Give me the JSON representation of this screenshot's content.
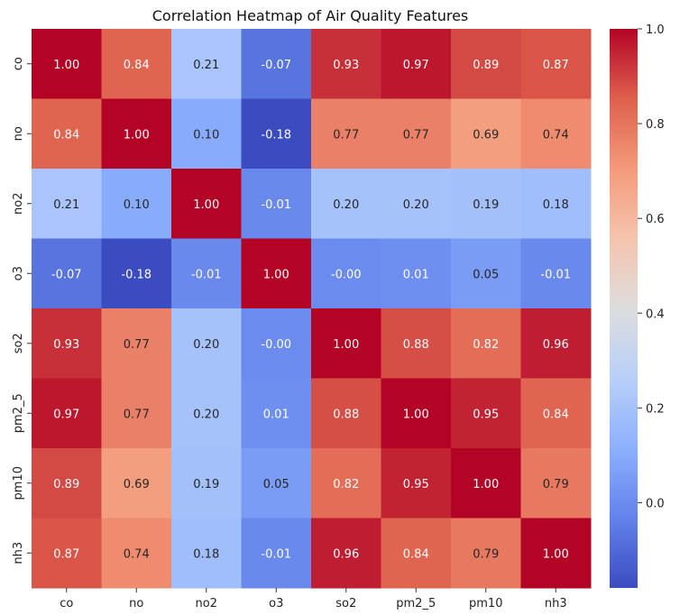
{
  "chart_data": {
    "type": "heatmap",
    "title": "Correlation Heatmap of Air Quality Features",
    "xlabel": "",
    "ylabel": "",
    "x_categories": [
      "co",
      "no",
      "no2",
      "o3",
      "so2",
      "pm2_5",
      "pm10",
      "nh3"
    ],
    "y_categories": [
      "co",
      "no",
      "no2",
      "o3",
      "so2",
      "pm2_5",
      "pm10",
      "nh3"
    ],
    "values": [
      [
        1.0,
        0.84,
        0.21,
        -0.07,
        0.93,
        0.97,
        0.89,
        0.87
      ],
      [
        0.84,
        1.0,
        0.1,
        -0.18,
        0.77,
        0.77,
        0.69,
        0.74
      ],
      [
        0.21,
        0.1,
        1.0,
        -0.01,
        0.2,
        0.2,
        0.19,
        0.18
      ],
      [
        -0.07,
        -0.18,
        -0.01,
        1.0,
        -0.0,
        0.01,
        0.05,
        -0.01
      ],
      [
        0.93,
        0.77,
        0.2,
        -0.0,
        1.0,
        0.88,
        0.82,
        0.96
      ],
      [
        0.97,
        0.77,
        0.2,
        0.01,
        0.88,
        1.0,
        0.95,
        0.84
      ],
      [
        0.89,
        0.69,
        0.19,
        0.05,
        0.82,
        0.95,
        1.0,
        0.79
      ],
      [
        0.87,
        0.74,
        0.18,
        -0.01,
        0.96,
        0.84,
        0.79,
        1.0
      ]
    ],
    "value_labels": [
      [
        "1.00",
        "0.84",
        "0.21",
        "-0.07",
        "0.93",
        "0.97",
        "0.89",
        "0.87"
      ],
      [
        "0.84",
        "1.00",
        "0.10",
        "-0.18",
        "0.77",
        "0.77",
        "0.69",
        "0.74"
      ],
      [
        "0.21",
        "0.10",
        "1.00",
        "-0.01",
        "0.20",
        "0.20",
        "0.19",
        "0.18"
      ],
      [
        "-0.07",
        "-0.18",
        "-0.01",
        "1.00",
        "-0.00",
        "0.01",
        "0.05",
        "-0.01"
      ],
      [
        "0.93",
        "0.77",
        "0.20",
        "-0.00",
        "1.00",
        "0.88",
        "0.82",
        "0.96"
      ],
      [
        "0.97",
        "0.77",
        "0.20",
        "0.01",
        "0.88",
        "1.00",
        "0.95",
        "0.84"
      ],
      [
        "0.89",
        "0.69",
        "0.19",
        "0.05",
        "0.82",
        "0.95",
        "1.00",
        "0.79"
      ],
      [
        "0.87",
        "0.74",
        "0.18",
        "-0.01",
        "0.96",
        "0.84",
        "0.79",
        "1.00"
      ]
    ],
    "colormap": "coolwarm",
    "color_range": [
      -0.18,
      1.0
    ],
    "colorbar_ticks": [
      0.0,
      0.2,
      0.4,
      0.6,
      0.8,
      1.0
    ],
    "colorbar_tick_labels": [
      "0.0",
      "0.2",
      "0.4",
      "0.6",
      "0.8",
      "1.0"
    ],
    "legend": "right",
    "grid": false
  }
}
